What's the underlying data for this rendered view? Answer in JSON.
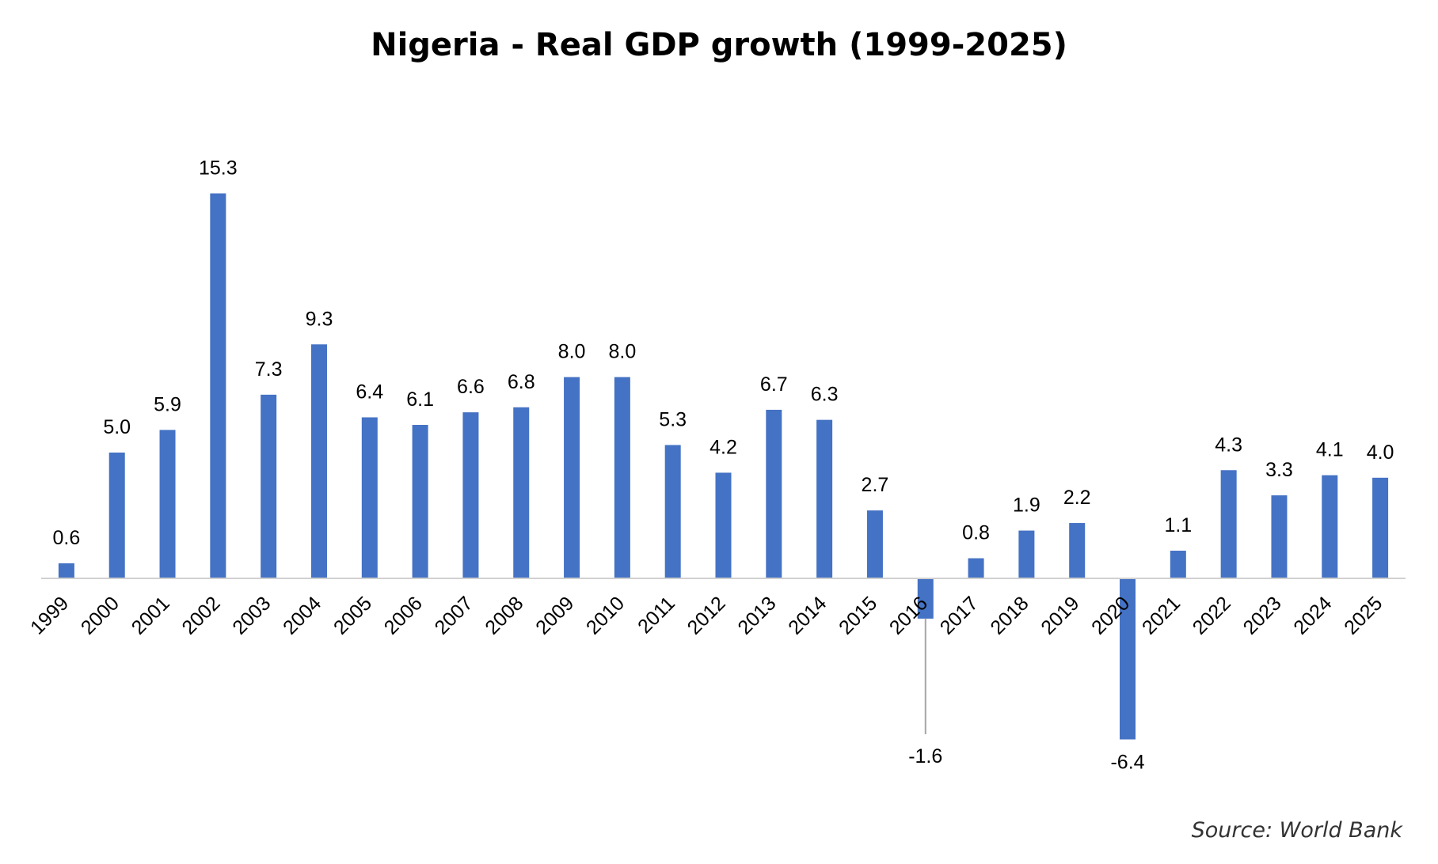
{
  "chart_data": {
    "type": "bar",
    "title": "Nigeria - Real GDP growth (1999-2025)",
    "xlabel": "",
    "ylabel": "",
    "categories": [
      "1999",
      "2000",
      "2001",
      "2002",
      "2003",
      "2004",
      "2005",
      "2006",
      "2007",
      "2008",
      "2009",
      "2010",
      "2011",
      "2012",
      "2013",
      "2014",
      "2015",
      "2016",
      "2017",
      "2018",
      "2019",
      "2020",
      "2021",
      "2022",
      "2023",
      "2024",
      "2025"
    ],
    "values": [
      0.6,
      5.0,
      5.9,
      15.3,
      7.3,
      9.3,
      6.4,
      6.1,
      6.6,
      6.8,
      8.0,
      8.0,
      5.3,
      4.2,
      6.7,
      6.3,
      2.7,
      -1.6,
      0.8,
      1.9,
      2.2,
      -6.4,
      1.1,
      4.3,
      3.3,
      4.1,
      4.0
    ],
    "value_labels": [
      "0.6",
      "5.0",
      "5.9",
      "15.3",
      "7.3",
      "9.3",
      "6.4",
      "6.1",
      "6.6",
      "6.8",
      "8.0",
      "8.0",
      "5.3",
      "4.2",
      "6.7",
      "6.3",
      "2.7",
      "-1.6",
      "0.8",
      "1.9",
      "2.2",
      "-6.4",
      "1.1",
      "4.3",
      "3.3",
      "4.1",
      "4.0"
    ],
    "grid": false,
    "legend": "none",
    "colors": {
      "bar": "#4472C4",
      "axis": "#D0D0D0",
      "leader_line": "#A6A6A6",
      "text": "#000000"
    }
  },
  "source": "Source: World Bank"
}
